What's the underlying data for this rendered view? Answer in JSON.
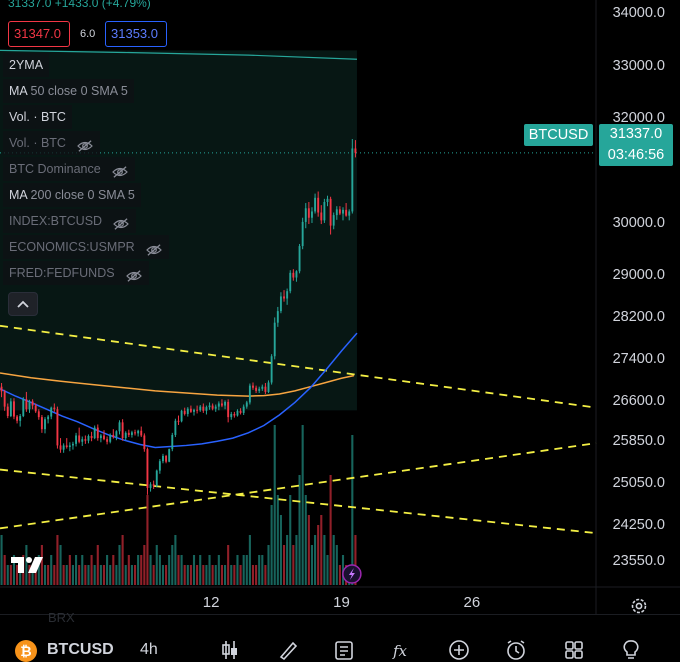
{
  "header": {
    "change_text": "31337.0  +1433.0 (+4.79%)",
    "sell_price": "31347.0",
    "spread": "6.0",
    "buy_price": "31353.0"
  },
  "legend": [
    {
      "label": "2YMA",
      "dim": false,
      "eye": false
    },
    {
      "label": "MA",
      "params": "50 close 0 SMA 5",
      "dim": false,
      "eye": false
    },
    {
      "label": "Vol. · BTC",
      "dim": false,
      "eye": false
    },
    {
      "label": "Vol. · BTC",
      "dim": true,
      "eye": true
    },
    {
      "label": "BTC Dominance",
      "dim": true,
      "eye": true
    },
    {
      "label": "MA",
      "params": "200 close 0 SMA 5",
      "dim": false,
      "eye": false
    },
    {
      "label": "INDEX:BTCUSD",
      "dim": true,
      "eye": true
    },
    {
      "label": "ECONOMICS:USMPR",
      "dim": true,
      "eye": true
    },
    {
      "label": "FRED:FEDFUNDS",
      "dim": true,
      "eye": true
    }
  ],
  "price_scale": {
    "ticks": [
      "34000.0",
      "33000.0",
      "32000.0",
      "30000.0",
      "29000.0",
      "28200.0",
      "27400.0",
      "26600.0",
      "25850.0",
      "25050.0",
      "24250.0",
      "23550.0"
    ],
    "symbol_label": "BTCUSD",
    "last_price": "31337.0",
    "countdown": "03:46:56"
  },
  "time_scale": {
    "ticks": [
      "12",
      "19",
      "26"
    ]
  },
  "bottom_bar": {
    "symbol": "BTCUSD",
    "interval": "4h",
    "faded_text": "BRX",
    "tools": [
      "candles-icon",
      "brush-icon",
      "note-icon",
      "fx-icon",
      "plus-circle-icon",
      "alarm-icon",
      "grid-icon",
      "bulb-icon"
    ]
  },
  "colors": {
    "up": "#26a69a",
    "down": "#f23645",
    "ma50": "#2962ff",
    "ma200": "#f7a541",
    "trend": "#f3ef44",
    "band": "#0d2a25",
    "label": "#26a69a"
  },
  "chart_data": {
    "type": "candlestick",
    "symbol": "BTCUSD",
    "interval": "4h",
    "x_ticks": [
      "12",
      "19",
      "26"
    ],
    "y_ticks": [
      34000,
      33000,
      32000,
      30000,
      29000,
      28200,
      27400,
      26600,
      25850,
      25050,
      24250,
      23550
    ],
    "ylim": [
      23100,
      34250
    ],
    "x_range_candles": [
      0,
      192
    ],
    "x_tick_positions": [
      68,
      110,
      152
    ],
    "last_price": 31337.0,
    "ohlc": [
      [
        26880,
        26950,
        26680,
        26790
      ],
      [
        26790,
        26820,
        26420,
        26500
      ],
      [
        26500,
        26560,
        26280,
        26320
      ],
      [
        26320,
        26660,
        26300,
        26600
      ],
      [
        26600,
        26660,
        26260,
        26310
      ],
      [
        26310,
        26340,
        26180,
        26230
      ],
      [
        26230,
        26360,
        26120,
        26320
      ],
      [
        26320,
        26680,
        26300,
        26640
      ],
      [
        26640,
        26780,
        26400,
        26450
      ],
      [
        26450,
        26630,
        26380,
        26600
      ],
      [
        26600,
        26640,
        26450,
        26520
      ],
      [
        26520,
        26560,
        26380,
        26410
      ],
      [
        26410,
        26450,
        26250,
        26300
      ],
      [
        26300,
        26340,
        26000,
        26070
      ],
      [
        26070,
        26300,
        25990,
        26260
      ],
      [
        26260,
        26340,
        26180,
        26310
      ],
      [
        26310,
        26500,
        26260,
        26480
      ],
      [
        26480,
        26560,
        26400,
        26450
      ],
      [
        26450,
        26500,
        25700,
        25760
      ],
      [
        25760,
        25900,
        25620,
        25680
      ],
      [
        25680,
        25800,
        25620,
        25760
      ],
      [
        25760,
        25900,
        25700,
        25730
      ],
      [
        25730,
        25820,
        25650,
        25760
      ],
      [
        25760,
        25830,
        25680,
        25790
      ],
      [
        25790,
        26000,
        25740,
        25950
      ],
      [
        25950,
        26100,
        25800,
        25830
      ],
      [
        25830,
        25930,
        25750,
        25880
      ],
      [
        25880,
        25950,
        25790,
        25850
      ],
      [
        25850,
        25970,
        25800,
        25940
      ],
      [
        25940,
        26020,
        25840,
        25900
      ],
      [
        25900,
        26140,
        25880,
        26100
      ],
      [
        26100,
        26160,
        25850,
        25900
      ],
      [
        25900,
        25980,
        25820,
        25950
      ],
      [
        25950,
        26050,
        25860,
        25880
      ],
      [
        25880,
        25930,
        25780,
        25830
      ],
      [
        25830,
        25990,
        25800,
        25960
      ],
      [
        25960,
        26070,
        25890,
        25920
      ],
      [
        25920,
        26050,
        25860,
        26030
      ],
      [
        26030,
        26240,
        25970,
        26200
      ],
      [
        26200,
        26260,
        25850,
        25900
      ],
      [
        25900,
        26030,
        25860,
        26000
      ],
      [
        26000,
        26060,
        25920,
        25960
      ],
      [
        25960,
        26040,
        25910,
        26010
      ],
      [
        26010,
        26060,
        25950,
        25990
      ],
      [
        25990,
        26060,
        25930,
        26040
      ],
      [
        26040,
        26120,
        25920,
        25950
      ],
      [
        25950,
        25990,
        25640,
        25690
      ],
      [
        25690,
        25720,
        24820,
        24950
      ],
      [
        24950,
        25060,
        24880,
        25020
      ],
      [
        25020,
        25090,
        24930,
        24990
      ],
      [
        24990,
        25300,
        24960,
        25280
      ],
      [
        25280,
        25500,
        25220,
        25460
      ],
      [
        25460,
        25600,
        25420,
        25560
      ],
      [
        25560,
        25580,
        25420,
        25450
      ],
      [
        25450,
        25700,
        25440,
        25690
      ],
      [
        25690,
        26000,
        25650,
        25960
      ],
      [
        25960,
        26270,
        25920,
        26230
      ],
      [
        26230,
        26330,
        26150,
        26220
      ],
      [
        26220,
        26440,
        26200,
        26420
      ],
      [
        26420,
        26480,
        26330,
        26360
      ],
      [
        26360,
        26490,
        26310,
        26460
      ],
      [
        26460,
        26520,
        26380,
        26400
      ],
      [
        26400,
        26460,
        26330,
        26440
      ],
      [
        26440,
        26520,
        26370,
        26430
      ],
      [
        26430,
        26530,
        26400,
        26500
      ],
      [
        26500,
        26560,
        26380,
        26420
      ],
      [
        26420,
        26520,
        26350,
        26490
      ],
      [
        26490,
        26580,
        26440,
        26520
      ],
      [
        26520,
        26560,
        26430,
        26460
      ],
      [
        26460,
        26540,
        26400,
        26500
      ],
      [
        26500,
        26600,
        26430,
        26560
      ],
      [
        26560,
        26640,
        26490,
        26520
      ],
      [
        26520,
        26620,
        26450,
        26590
      ],
      [
        26590,
        26640,
        26200,
        26300
      ],
      [
        26300,
        26400,
        26250,
        26360
      ],
      [
        26360,
        26400,
        26290,
        26330
      ],
      [
        26330,
        26450,
        26310,
        26420
      ],
      [
        26420,
        26470,
        26350,
        26380
      ],
      [
        26380,
        26540,
        26340,
        26500
      ],
      [
        26500,
        26610,
        26460,
        26580
      ],
      [
        26580,
        26940,
        26540,
        26900
      ],
      [
        26900,
        26960,
        26820,
        26860
      ],
      [
        26860,
        26900,
        26760,
        26800
      ],
      [
        26800,
        26880,
        26760,
        26840
      ],
      [
        26840,
        26920,
        26800,
        26880
      ],
      [
        26880,
        26950,
        26740,
        26780
      ],
      [
        26780,
        27000,
        26760,
        26960
      ],
      [
        26960,
        27500,
        26920,
        27460
      ],
      [
        27460,
        28200,
        27400,
        28100
      ],
      [
        28100,
        28400,
        28020,
        28320
      ],
      [
        28320,
        28680,
        28280,
        28600
      ],
      [
        28600,
        28720,
        28500,
        28560
      ],
      [
        28560,
        28750,
        28440,
        28700
      ],
      [
        28700,
        29100,
        28660,
        29050
      ],
      [
        29050,
        29120,
        28900,
        28960
      ],
      [
        28960,
        29100,
        28880,
        29080
      ],
      [
        29080,
        29600,
        29040,
        29560
      ],
      [
        29560,
        30100,
        29500,
        30020
      ],
      [
        30020,
        30380,
        29900,
        30280
      ],
      [
        30280,
        30400,
        29980,
        30100
      ],
      [
        30100,
        30300,
        30000,
        30220
      ],
      [
        30220,
        30560,
        30180,
        30480
      ],
      [
        30480,
        30600,
        30120,
        30200
      ],
      [
        30200,
        30340,
        29980,
        30050
      ],
      [
        30050,
        30460,
        30000,
        30400
      ],
      [
        30400,
        30520,
        30320,
        30460
      ],
      [
        30460,
        30500,
        29780,
        29950
      ],
      [
        29950,
        30200,
        29880,
        30150
      ],
      [
        30150,
        30320,
        30060,
        30260
      ],
      [
        30260,
        30320,
        30150,
        30180
      ],
      [
        30180,
        30300,
        30050,
        30250
      ],
      [
        30250,
        30380,
        30120,
        30140
      ],
      [
        30140,
        30260,
        30050,
        30220
      ],
      [
        30220,
        31600,
        30180,
        31420
      ],
      [
        31420,
        31580,
        31250,
        31337
      ]
    ],
    "ma50_points": [
      [
        0,
        26840
      ],
      [
        5,
        26700
      ],
      [
        10,
        26580
      ],
      [
        15,
        26450
      ],
      [
        20,
        26320
      ],
      [
        25,
        26210
      ],
      [
        30,
        26080
      ],
      [
        35,
        25960
      ],
      [
        40,
        25860
      ],
      [
        45,
        25780
      ],
      [
        50,
        25720
      ],
      [
        55,
        25740
      ],
      [
        60,
        25760
      ],
      [
        65,
        25790
      ],
      [
        70,
        25840
      ],
      [
        75,
        25900
      ],
      [
        80,
        26000
      ],
      [
        85,
        26140
      ],
      [
        90,
        26340
      ],
      [
        95,
        26580
      ],
      [
        100,
        26860
      ],
      [
        105,
        27200
      ],
      [
        110,
        27560
      ],
      [
        115,
        27900
      ]
    ],
    "ma200_points": [
      [
        0,
        27140
      ],
      [
        10,
        27050
      ],
      [
        20,
        26980
      ],
      [
        30,
        26920
      ],
      [
        40,
        26860
      ],
      [
        50,
        26800
      ],
      [
        60,
        26760
      ],
      [
        70,
        26720
      ],
      [
        80,
        26700
      ],
      [
        85,
        26710
      ],
      [
        90,
        26740
      ],
      [
        95,
        26800
      ],
      [
        100,
        26880
      ],
      [
        105,
        26960
      ],
      [
        110,
        27040
      ],
      [
        114,
        27090
      ]
    ],
    "two_yma_points": [
      [
        0,
        33290
      ],
      [
        40,
        33250
      ],
      [
        80,
        33200
      ],
      [
        115,
        33120
      ]
    ],
    "trend_lines": [
      [
        [
          0,
          28040
        ],
        [
          149,
          26830
        ]
      ],
      [
        [
          0,
          25300
        ],
        [
          149,
          24360
        ]
      ],
      [
        [
          0,
          24180
        ],
        [
          149,
          25440
        ]
      ]
    ],
    "volume": [
      [
        5,
        1
      ],
      [
        3,
        0
      ],
      [
        2,
        1
      ],
      [
        2,
        0
      ],
      [
        3,
        1
      ],
      [
        2,
        0
      ],
      [
        2,
        1
      ],
      [
        3,
        0
      ],
      [
        4,
        1
      ],
      [
        2,
        0
      ],
      [
        2,
        1
      ],
      [
        2,
        0
      ],
      [
        3,
        1
      ],
      [
        4,
        0
      ],
      [
        2,
        1
      ],
      [
        2,
        0
      ],
      [
        3,
        1
      ],
      [
        2,
        0
      ],
      [
        5,
        0
      ],
      [
        4,
        1
      ],
      [
        2,
        0
      ],
      [
        2,
        1
      ],
      [
        3,
        0
      ],
      [
        2,
        1
      ],
      [
        3,
        1
      ],
      [
        2,
        0
      ],
      [
        3,
        1
      ],
      [
        2,
        0
      ],
      [
        2,
        1
      ],
      [
        3,
        0
      ],
      [
        2,
        1
      ],
      [
        4,
        0
      ],
      [
        2,
        1
      ],
      [
        2,
        0
      ],
      [
        3,
        1
      ],
      [
        2,
        1
      ],
      [
        3,
        0
      ],
      [
        2,
        1
      ],
      [
        4,
        1
      ],
      [
        5,
        0
      ],
      [
        2,
        1
      ],
      [
        3,
        0
      ],
      [
        2,
        1
      ],
      [
        2,
        0
      ],
      [
        3,
        1
      ],
      [
        3,
        0
      ],
      [
        4,
        0
      ],
      [
        9,
        0
      ],
      [
        3,
        1
      ],
      [
        2,
        0
      ],
      [
        4,
        1
      ],
      [
        3,
        1
      ],
      [
        2,
        1
      ],
      [
        2,
        0
      ],
      [
        3,
        1
      ],
      [
        4,
        1
      ],
      [
        5,
        1
      ],
      [
        3,
        0
      ],
      [
        3,
        1
      ],
      [
        2,
        0
      ],
      [
        2,
        1
      ],
      [
        2,
        0
      ],
      [
        3,
        1
      ],
      [
        2,
        0
      ],
      [
        3,
        1
      ],
      [
        2,
        0
      ],
      [
        2,
        1
      ],
      [
        3,
        1
      ],
      [
        2,
        0
      ],
      [
        2,
        1
      ],
      [
        3,
        1
      ],
      [
        2,
        0
      ],
      [
        2,
        1
      ],
      [
        4,
        0
      ],
      [
        2,
        1
      ],
      [
        2,
        0
      ],
      [
        3,
        1
      ],
      [
        2,
        0
      ],
      [
        3,
        1
      ],
      [
        3,
        1
      ],
      [
        5,
        1
      ],
      [
        2,
        0
      ],
      [
        2,
        0
      ],
      [
        3,
        1
      ],
      [
        3,
        1
      ],
      [
        2,
        0
      ],
      [
        4,
        1
      ],
      [
        8,
        1
      ],
      [
        16,
        1
      ],
      [
        9,
        1
      ],
      [
        7,
        1
      ],
      [
        4,
        0
      ],
      [
        5,
        1
      ],
      [
        9,
        1
      ],
      [
        4,
        0
      ],
      [
        5,
        1
      ],
      [
        11,
        1
      ],
      [
        16,
        1
      ],
      [
        9,
        1
      ],
      [
        7,
        0
      ],
      [
        4,
        1
      ],
      [
        5,
        1
      ],
      [
        6,
        0
      ],
      [
        7,
        0
      ],
      [
        5,
        1
      ],
      [
        3,
        1
      ],
      [
        11,
        0
      ],
      [
        5,
        1
      ],
      [
        4,
        1
      ],
      [
        2,
        0
      ],
      [
        3,
        1
      ],
      [
        2,
        0
      ],
      [
        2,
        1
      ],
      [
        15,
        1
      ],
      [
        5,
        0
      ]
    ],
    "volume_scale_max": 16
  }
}
